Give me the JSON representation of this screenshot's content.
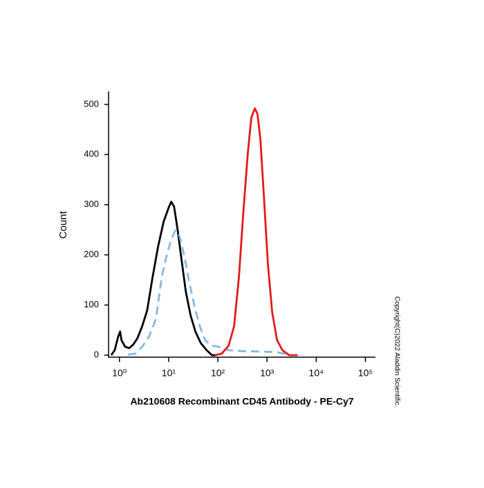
{
  "chart_data": {
    "type": "line",
    "x_label": "Ab210608 Recombinant CD45 Antibody - PE-Cy7",
    "y_label": "Count",
    "annotation": "Copyright(C)2022 Aladdin Scientific.",
    "xscale": "log",
    "xlim": [
      0.6,
      160000
    ],
    "ylim": [
      -4,
      526
    ],
    "xticks": [
      {
        "value": 1,
        "label": "10⁰"
      },
      {
        "value": 10,
        "label": "10¹"
      },
      {
        "value": 100,
        "label": "10²"
      },
      {
        "value": 1000,
        "label": "10³"
      },
      {
        "value": 10000,
        "label": "10⁴"
      },
      {
        "value": 100000,
        "label": "10⁵"
      }
    ],
    "yticks": [
      0,
      100,
      200,
      300,
      400,
      500
    ],
    "series": [
      {
        "color": "#000000",
        "dash": false,
        "x": [
          0.68,
          0.8,
          0.94,
          1.03,
          1.1,
          1.3,
          1.57,
          1.9,
          2.3,
          2.9,
          3.65,
          4.7,
          6.1,
          7.9,
          10,
          11.3,
          12.9,
          15.1,
          18.3,
          22.3,
          28,
          35,
          45,
          59,
          76,
          92
        ],
        "values": [
          0,
          10,
          37,
          47,
          30,
          17,
          14,
          21,
          33,
          58,
          89,
          155,
          217,
          266,
          294,
          306,
          296,
          252,
          190,
          127,
          79,
          47,
          24,
          10,
          0,
          0
        ]
      },
      {
        "color": "#85b8e3",
        "dash": true,
        "x": [
          1.5,
          2.1,
          2.9,
          4,
          5.5,
          7.2,
          9,
          11.3,
          13.7,
          16.6,
          20.9,
          26,
          33,
          43,
          55,
          74,
          102,
          166,
          317,
          840,
          1600,
          3050,
          4200
        ],
        "values": [
          1,
          3,
          17,
          37,
          72,
          155,
          197,
          231,
          249,
          238,
          197,
          148,
          100,
          58,
          30,
          19,
          17,
          10,
          8,
          7,
          6,
          0,
          0
        ]
      },
      {
        "color": "#e01b1b",
        "dash": false,
        "x": [
          87,
          120,
          166,
          214,
          268,
          335,
          408,
          480,
          565,
          640,
          730,
          860,
          1040,
          1270,
          1600,
          2050,
          2830,
          4200
        ],
        "values": [
          0,
          3,
          19,
          58,
          155,
          294,
          404,
          474,
          492,
          481,
          432,
          321,
          183,
          86,
          30,
          10,
          0,
          0
        ]
      }
    ]
  }
}
